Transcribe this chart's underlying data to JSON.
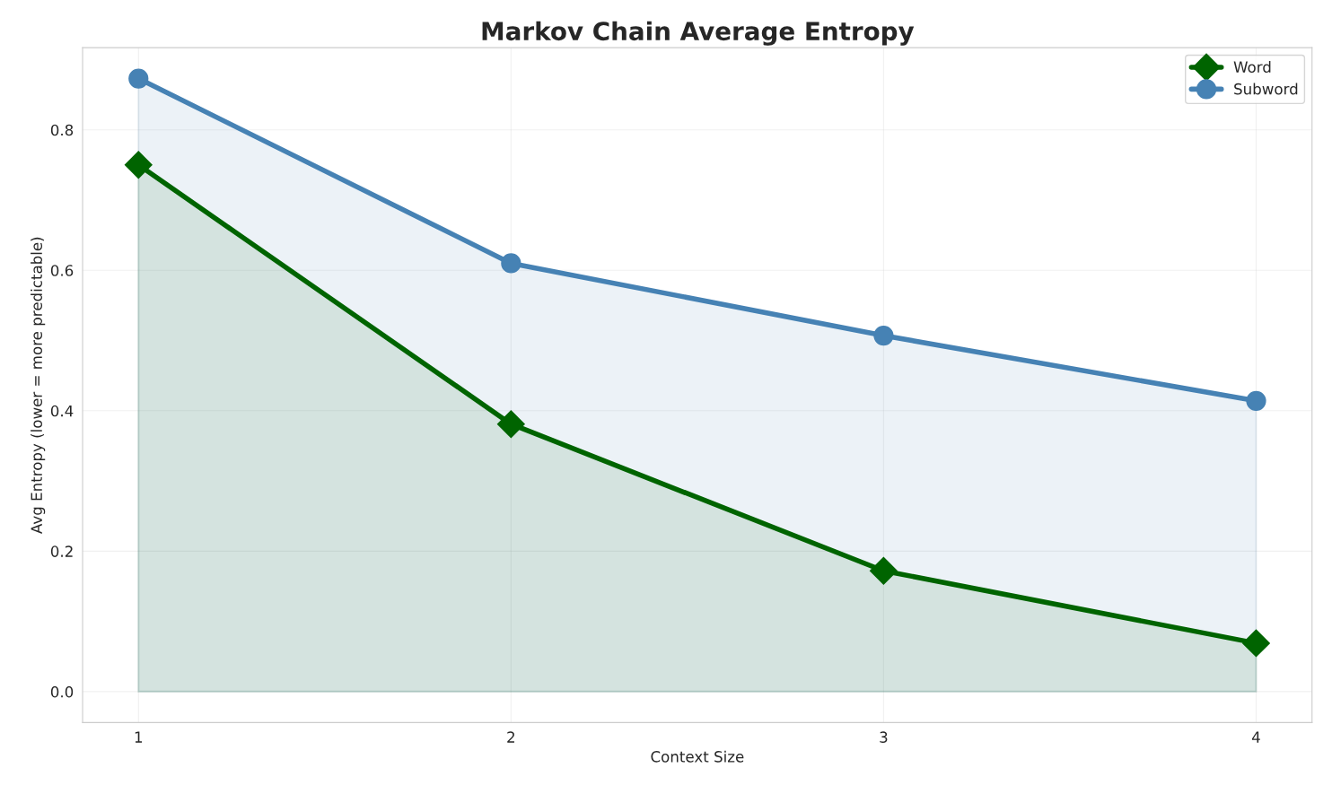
{
  "chart_data": {
    "type": "area",
    "title": "Markov Chain Average Entropy",
    "xlabel": "Context Size",
    "ylabel": "Avg Entropy (lower = more predictable)",
    "x": [
      1,
      2,
      3,
      4
    ],
    "series": [
      {
        "name": "Word",
        "color": "#006400",
        "marker": "diamond",
        "values": [
          0.75,
          0.381,
          0.172,
          0.069
        ]
      },
      {
        "name": "Subword",
        "color": "#4682b4",
        "marker": "circle",
        "values": [
          0.873,
          0.61,
          0.507,
          0.414
        ]
      }
    ],
    "xlim": [
      0.85,
      4.15
    ],
    "xticks": [
      1,
      2,
      3,
      4
    ],
    "ylim": [
      -0.044,
      0.917
    ],
    "yticks": [
      {
        "value": 0,
        "label": "0.0"
      },
      0.2,
      0.4,
      0.6,
      0.8
    ],
    "grid": true,
    "legend": "top right"
  }
}
